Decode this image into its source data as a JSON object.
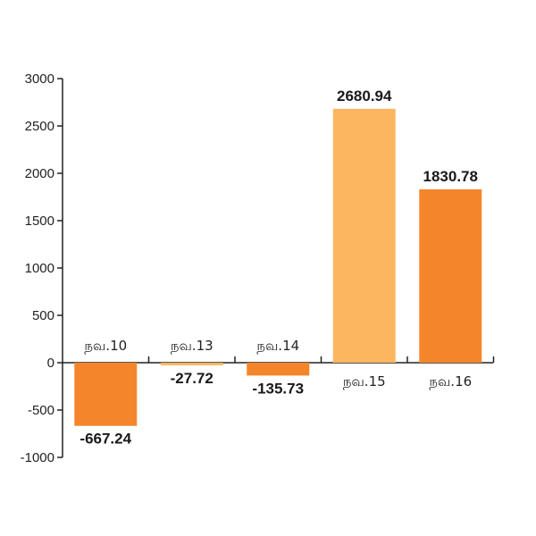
{
  "chart_data": {
    "type": "bar",
    "categories": [
      "நவ.10",
      "நவ.13",
      "நவ.14",
      "நவ.15",
      "நவ.16"
    ],
    "values": [
      -667.24,
      -27.72,
      -135.73,
      2680.94,
      1830.78
    ],
    "value_labels": [
      "-667.24",
      "-27.72",
      "-135.73",
      "2680.94",
      "1830.78"
    ],
    "bar_colors": [
      "#f5852a",
      "#fbb65f",
      "#f5852a",
      "#fbb65f",
      "#f5852a"
    ],
    "ylim": [
      -1000,
      3000
    ],
    "yticks": [
      -1000,
      -500,
      0,
      500,
      1000,
      1500,
      2000,
      2500,
      3000
    ],
    "title": "",
    "xlabel": "",
    "ylabel": "",
    "grid": false
  }
}
